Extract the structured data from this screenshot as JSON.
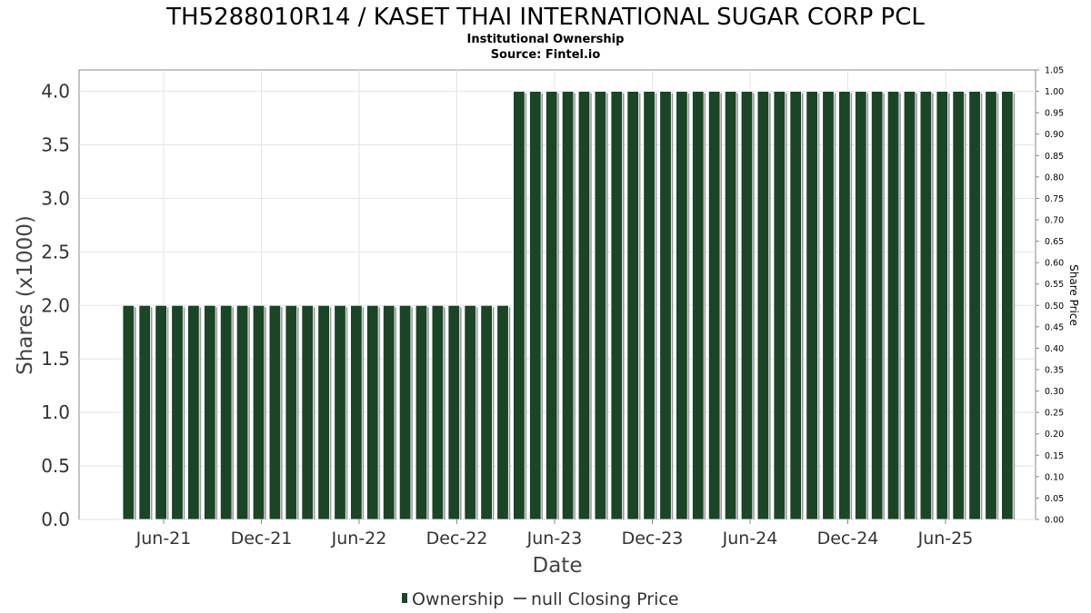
{
  "chart_data": {
    "type": "bar",
    "title": "TH5288010R14 / KASET THAI INTERNATIONAL SUGAR CORP PCL",
    "subtitle_lines": [
      "Institutional Ownership",
      "Source: Fintel.io"
    ],
    "xlabel": "Date",
    "ylabel": "Shares (x1000)",
    "y2label": "Share Price",
    "ylim": [
      0,
      4.2
    ],
    "y2lim": [
      0,
      1.05
    ],
    "yticks": [
      "0.0",
      "0.5",
      "1.0",
      "1.5",
      "2.0",
      "2.5",
      "3.0",
      "3.5",
      "4.0"
    ],
    "y2ticks": [
      "0.00",
      "0.05",
      "0.10",
      "0.15",
      "0.20",
      "0.25",
      "0.30",
      "0.35",
      "0.40",
      "0.45",
      "0.50",
      "0.55",
      "0.60",
      "0.65",
      "0.70",
      "0.75",
      "0.80",
      "0.85",
      "0.90",
      "0.95",
      "1.00",
      "1.05"
    ],
    "xticks": [
      "Jun-21",
      "Dec-21",
      "Jun-22",
      "Dec-22",
      "Jun-23",
      "Dec-23",
      "Jun-24",
      "Dec-24",
      "Jun-25"
    ],
    "grid": true,
    "series": [
      {
        "name": "Ownership",
        "color": "#1a4526",
        "values": [
          2,
          2,
          2,
          2,
          2,
          2,
          2,
          2,
          2,
          2,
          2,
          2,
          2,
          2,
          2,
          2,
          2,
          2,
          2,
          2,
          2,
          2,
          2,
          2,
          4,
          4,
          4,
          4,
          4,
          4,
          4,
          4,
          4,
          4,
          4,
          4,
          4,
          4,
          4,
          4,
          4,
          4,
          4,
          4,
          4,
          4,
          4,
          4,
          4,
          4,
          4,
          4,
          4,
          4,
          4
        ]
      }
    ],
    "legend": [
      {
        "marker": "bar",
        "label": "Ownership"
      },
      {
        "marker": "line",
        "label": "null Closing Price"
      }
    ],
    "legend_position": "bottom-center"
  }
}
